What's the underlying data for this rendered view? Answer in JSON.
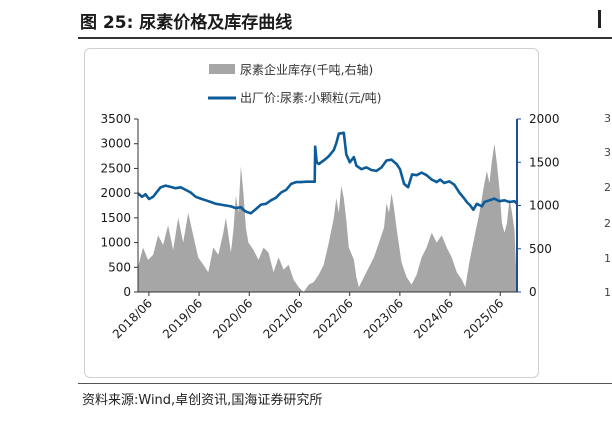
{
  "figure": {
    "title": "图 25:  尿素价格及库存曲线",
    "source": "资料来源:Wind,卓创资讯,国海证券研究所"
  },
  "colors": {
    "inventory": "#a6a6a6",
    "price": "#0d5c99",
    "right_axis": "#1f4e96"
  },
  "right_edge_ticks": [
    "3",
    "3",
    "2",
    "2",
    "1",
    "1"
  ],
  "chart_data": {
    "type": "area",
    "legend": [
      {
        "key": "inventory",
        "label": "尿素企业库存(千吨,右轴)"
      },
      {
        "key": "price",
        "label": "出厂价:尿素:小颗粒(元/吨)"
      }
    ],
    "legend_position": "top",
    "grid": false,
    "x_ticks": [
      "2018/06",
      "2019/06",
      "2020/06",
      "2021/06",
      "2022/06",
      "2023/06",
      "2024/06",
      "2025/06"
    ],
    "x_range": [
      2018.2,
      2025.75
    ],
    "y_left": {
      "ticks": [
        0,
        500,
        1000,
        1500,
        2000,
        2500,
        3000,
        3500
      ],
      "range": [
        0,
        3500
      ]
    },
    "y_right": {
      "ticks": [
        0,
        500,
        1000,
        1500,
        2000
      ],
      "range": [
        0,
        2000
      ]
    },
    "series": [
      {
        "name": "尿素企业库存(千吨,右轴)",
        "type": "area",
        "axis": "left",
        "points": [
          [
            2018.2,
            500
          ],
          [
            2018.3,
            900
          ],
          [
            2018.4,
            650
          ],
          [
            2018.5,
            750
          ],
          [
            2018.6,
            1150
          ],
          [
            2018.7,
            950
          ],
          [
            2018.8,
            1350
          ],
          [
            2018.9,
            850
          ],
          [
            2019.0,
            1500
          ],
          [
            2019.1,
            1000
          ],
          [
            2019.2,
            1600
          ],
          [
            2019.3,
            1150
          ],
          [
            2019.4,
            700
          ],
          [
            2019.5,
            550
          ],
          [
            2019.6,
            400
          ],
          [
            2019.7,
            900
          ],
          [
            2019.8,
            750
          ],
          [
            2019.9,
            1200
          ],
          [
            2019.95,
            1500
          ],
          [
            2020.0,
            1150
          ],
          [
            2020.05,
            800
          ],
          [
            2020.1,
            1250
          ],
          [
            2020.15,
            1950
          ],
          [
            2020.2,
            1600
          ],
          [
            2020.25,
            2550
          ],
          [
            2020.3,
            2000
          ],
          [
            2020.35,
            1300
          ],
          [
            2020.4,
            1000
          ],
          [
            2020.5,
            850
          ],
          [
            2020.6,
            650
          ],
          [
            2020.7,
            900
          ],
          [
            2020.8,
            800
          ],
          [
            2020.9,
            400
          ],
          [
            2021.0,
            700
          ],
          [
            2021.1,
            450
          ],
          [
            2021.2,
            550
          ],
          [
            2021.3,
            250
          ],
          [
            2021.4,
            100
          ],
          [
            2021.5,
            0
          ],
          [
            2021.6,
            150
          ],
          [
            2021.7,
            200
          ],
          [
            2021.8,
            350
          ],
          [
            2021.9,
            550
          ],
          [
            2022.0,
            1000
          ],
          [
            2022.1,
            1500
          ],
          [
            2022.15,
            1900
          ],
          [
            2022.2,
            1600
          ],
          [
            2022.25,
            2150
          ],
          [
            2022.3,
            1900
          ],
          [
            2022.35,
            1450
          ],
          [
            2022.4,
            900
          ],
          [
            2022.5,
            650
          ],
          [
            2022.55,
            300
          ],
          [
            2022.6,
            100
          ],
          [
            2022.7,
            300
          ],
          [
            2022.8,
            500
          ],
          [
            2022.9,
            700
          ],
          [
            2023.0,
            1000
          ],
          [
            2023.1,
            1300
          ],
          [
            2023.15,
            1800
          ],
          [
            2023.2,
            1600
          ],
          [
            2023.25,
            2000
          ],
          [
            2023.3,
            1700
          ],
          [
            2023.35,
            1300
          ],
          [
            2023.45,
            600
          ],
          [
            2023.55,
            300
          ],
          [
            2023.65,
            150
          ],
          [
            2023.75,
            350
          ],
          [
            2023.85,
            700
          ],
          [
            2023.95,
            900
          ],
          [
            2024.05,
            1200
          ],
          [
            2024.15,
            1000
          ],
          [
            2024.25,
            1150
          ],
          [
            2024.35,
            900
          ],
          [
            2024.45,
            700
          ],
          [
            2024.55,
            400
          ],
          [
            2024.65,
            250
          ],
          [
            2024.72,
            100
          ],
          [
            2024.8,
            600
          ],
          [
            2024.9,
            1100
          ],
          [
            2025.0,
            1600
          ],
          [
            2025.1,
            2200
          ],
          [
            2025.15,
            2450
          ],
          [
            2025.2,
            2200
          ],
          [
            2025.25,
            2650
          ],
          [
            2025.3,
            3000
          ],
          [
            2025.35,
            2600
          ],
          [
            2025.4,
            2100
          ],
          [
            2025.45,
            1400
          ],
          [
            2025.5,
            1200
          ],
          [
            2025.55,
            1400
          ],
          [
            2025.6,
            1900
          ],
          [
            2025.65,
            1600
          ],
          [
            2025.7,
            1250
          ],
          [
            2025.75,
            0
          ]
        ]
      },
      {
        "name": "出厂价:尿素:小颗粒(元/吨)",
        "type": "line",
        "axis": "right",
        "points": [
          [
            2018.2,
            1140
          ],
          [
            2018.28,
            1100
          ],
          [
            2018.35,
            1130
          ],
          [
            2018.42,
            1075
          ],
          [
            2018.5,
            1100
          ],
          [
            2018.58,
            1160
          ],
          [
            2018.65,
            1210
          ],
          [
            2018.75,
            1230
          ],
          [
            2018.85,
            1215
          ],
          [
            2018.95,
            1200
          ],
          [
            2019.05,
            1210
          ],
          [
            2019.15,
            1180
          ],
          [
            2019.25,
            1150
          ],
          [
            2019.35,
            1100
          ],
          [
            2019.45,
            1080
          ],
          [
            2019.55,
            1060
          ],
          [
            2019.65,
            1040
          ],
          [
            2019.75,
            1020
          ],
          [
            2019.85,
            1010
          ],
          [
            2019.95,
            1000
          ],
          [
            2020.05,
            990
          ],
          [
            2020.15,
            970
          ],
          [
            2020.25,
            980
          ],
          [
            2020.3,
            950
          ],
          [
            2020.35,
            930
          ],
          [
            2020.45,
            910
          ],
          [
            2020.55,
            960
          ],
          [
            2020.65,
            1010
          ],
          [
            2020.75,
            1020
          ],
          [
            2020.85,
            1060
          ],
          [
            2020.95,
            1090
          ],
          [
            2021.05,
            1150
          ],
          [
            2021.15,
            1180
          ],
          [
            2021.25,
            1250
          ],
          [
            2021.35,
            1270
          ],
          [
            2021.45,
            1270
          ],
          [
            2021.55,
            1275
          ],
          [
            2021.65,
            1275
          ],
          [
            2021.72,
            1275
          ],
          [
            2021.73,
            1680
          ],
          [
            2021.76,
            1500
          ],
          [
            2021.8,
            1480
          ],
          [
            2021.9,
            1520
          ],
          [
            2022.0,
            1570
          ],
          [
            2022.1,
            1640
          ],
          [
            2022.15,
            1720
          ],
          [
            2022.2,
            1830
          ],
          [
            2022.3,
            1840
          ],
          [
            2022.35,
            1590
          ],
          [
            2022.42,
            1500
          ],
          [
            2022.5,
            1560
          ],
          [
            2022.55,
            1460
          ],
          [
            2022.65,
            1420
          ],
          [
            2022.75,
            1440
          ],
          [
            2022.85,
            1410
          ],
          [
            2022.95,
            1400
          ],
          [
            2023.05,
            1440
          ],
          [
            2023.15,
            1520
          ],
          [
            2023.25,
            1530
          ],
          [
            2023.35,
            1480
          ],
          [
            2023.42,
            1420
          ],
          [
            2023.5,
            1250
          ],
          [
            2023.58,
            1210
          ],
          [
            2023.66,
            1360
          ],
          [
            2023.75,
            1350
          ],
          [
            2023.85,
            1380
          ],
          [
            2023.95,
            1350
          ],
          [
            2024.05,
            1300
          ],
          [
            2024.15,
            1270
          ],
          [
            2024.22,
            1300
          ],
          [
            2024.3,
            1260
          ],
          [
            2024.4,
            1280
          ],
          [
            2024.5,
            1240
          ],
          [
            2024.6,
            1150
          ],
          [
            2024.7,
            1080
          ],
          [
            2024.75,
            1040
          ],
          [
            2024.82,
            1000
          ],
          [
            2024.88,
            950
          ],
          [
            2024.95,
            1020
          ],
          [
            2025.05,
            990
          ],
          [
            2025.1,
            1040
          ],
          [
            2025.2,
            1060
          ],
          [
            2025.3,
            1080
          ],
          [
            2025.4,
            1050
          ],
          [
            2025.5,
            1060
          ],
          [
            2025.6,
            1040
          ],
          [
            2025.7,
            1050
          ],
          [
            2025.75,
            1020
          ]
        ]
      }
    ]
  }
}
